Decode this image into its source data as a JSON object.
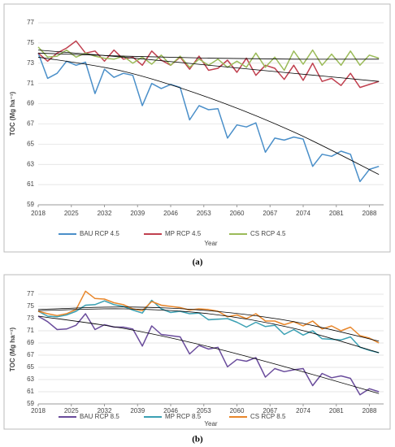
{
  "chart_data": [
    {
      "type": "line",
      "caption": "(a)",
      "xlabel": "Year",
      "ylabel": "TOC (Mg ha⁻¹)",
      "xlim": [
        2018,
        2091
      ],
      "ylim": [
        59,
        77
      ],
      "xticks": [
        2018,
        2025,
        2032,
        2039,
        2046,
        2053,
        2060,
        2067,
        2074,
        2081,
        2088
      ],
      "yticks": [
        59,
        61,
        63,
        65,
        67,
        69,
        71,
        73,
        75,
        77
      ],
      "grid": true,
      "x": [
        2018,
        2020,
        2022,
        2024,
        2026,
        2028,
        2030,
        2032,
        2034,
        2036,
        2038,
        2040,
        2042,
        2044,
        2046,
        2048,
        2050,
        2052,
        2054,
        2056,
        2058,
        2060,
        2062,
        2064,
        2066,
        2068,
        2070,
        2072,
        2074,
        2076,
        2078,
        2080,
        2082,
        2084,
        2086,
        2088,
        2090
      ],
      "trend_x": [
        2018,
        2036,
        2054,
        2072,
        2090
      ],
      "trend_color": "#000000",
      "series": [
        {
          "name": "BAU RCP 4.5",
          "color": "#4a8fc9",
          "values": [
            74,
            71.5,
            72,
            73.2,
            72.8,
            73.1,
            70,
            72.4,
            71.6,
            72,
            71.8,
            68.8,
            71,
            70.5,
            70.9,
            70.6,
            67.4,
            68.8,
            68.4,
            68.5,
            65.6,
            66.9,
            66.7,
            67.1,
            64.2,
            65.6,
            65.4,
            65.7,
            65.5,
            62.8,
            64,
            63.8,
            64.3,
            64,
            61.3,
            62.5,
            62.8
          ],
          "trend": [
            73.6,
            72.2,
            69.6,
            66.2,
            62.0
          ]
        },
        {
          "name": "MP RCP 4.5",
          "color": "#c0404f",
          "values": [
            74,
            73.2,
            74,
            74.5,
            75.2,
            74,
            74.2,
            73.2,
            74.3,
            73.4,
            73.6,
            72.8,
            74.2,
            73.3,
            72.8,
            73.6,
            72.4,
            73.7,
            72.3,
            72.5,
            73.3,
            72.1,
            73.5,
            71.8,
            72.8,
            72.5,
            71.4,
            72.8,
            71.3,
            73,
            71.2,
            71.5,
            70.8,
            72,
            70.6,
            70.9,
            71.2
          ],
          "trend": [
            74.3,
            73.6,
            72.8,
            72.0,
            71.2
          ]
        },
        {
          "name": "CS RCP 4.5",
          "color": "#9bbb59",
          "values": [
            74.6,
            73.6,
            73.7,
            74.3,
            73.6,
            74,
            73.7,
            73.5,
            73.4,
            73.7,
            73,
            73.6,
            72.9,
            73.8,
            72.8,
            73.7,
            72.6,
            73.4,
            72.8,
            73.4,
            72.6,
            73.2,
            72.6,
            74,
            72.6,
            73.6,
            72.3,
            74.2,
            72.9,
            74.3,
            72.8,
            73.9,
            72.8,
            74.2,
            72.8,
            73.8,
            73.5
          ],
          "trend": [
            74.0,
            73.7,
            73.5,
            73.4,
            73.4
          ]
        }
      ]
    },
    {
      "type": "line",
      "caption": "(b)",
      "xlabel": "Year",
      "ylabel": "TOC (Mg ha⁻¹)",
      "xlim": [
        2018,
        2091
      ],
      "ylim": [
        59,
        77
      ],
      "xticks": [
        2018,
        2025,
        2032,
        2039,
        2046,
        2053,
        2060,
        2067,
        2074,
        2081,
        2088
      ],
      "yticks": [
        59,
        61,
        63,
        65,
        67,
        69,
        71,
        73,
        75,
        77
      ],
      "grid": true,
      "x": [
        2018,
        2020,
        2022,
        2024,
        2026,
        2028,
        2030,
        2032,
        2034,
        2036,
        2038,
        2040,
        2042,
        2044,
        2046,
        2048,
        2050,
        2052,
        2054,
        2056,
        2058,
        2060,
        2062,
        2064,
        2066,
        2068,
        2070,
        2072,
        2074,
        2076,
        2078,
        2080,
        2082,
        2084,
        2086,
        2088,
        2090
      ],
      "trend_x": [
        2018,
        2036,
        2054,
        2072,
        2090
      ],
      "trend_color": "#000000",
      "series": [
        {
          "name": "BAU RCP 8.5",
          "color": "#6a4c9c",
          "values": [
            73.4,
            72.5,
            71.2,
            71.3,
            71.9,
            73.8,
            71.2,
            72,
            71.6,
            71.6,
            71.3,
            68.5,
            71.8,
            70.4,
            70.2,
            70,
            67.2,
            68.6,
            68,
            68.3,
            65.1,
            66.3,
            66,
            66.6,
            63.4,
            64.8,
            64.3,
            64.6,
            64.8,
            62,
            64,
            63.3,
            63.6,
            63.2,
            60.5,
            61.5,
            61
          ],
          "trend": [
            73.4,
            71.4,
            68.4,
            64.7,
            60.7
          ]
        },
        {
          "name": "MP RCP 8.5",
          "color": "#3aa0b3",
          "values": [
            74.2,
            73.4,
            73.3,
            73.6,
            74.2,
            75.2,
            75.3,
            75.9,
            75.3,
            75,
            74.4,
            73.9,
            76,
            74.6,
            74,
            74.2,
            73.8,
            73.9,
            72.8,
            72.9,
            73,
            72.4,
            71.6,
            72.4,
            71.7,
            71.9,
            70.4,
            71.2,
            70.3,
            71,
            69.7,
            69.6,
            69.5,
            70,
            68.3,
            67.8,
            67.4
          ],
          "trend": [
            74.3,
            74.6,
            73.8,
            71.4,
            67.4
          ]
        },
        {
          "name": "CS RCP 8.5",
          "color": "#e8862a",
          "values": [
            74.2,
            73.8,
            73.5,
            73.8,
            74.5,
            77.5,
            76.3,
            76.2,
            75.6,
            75.3,
            74.6,
            74.3,
            75.8,
            75.2,
            75,
            74.8,
            74.4,
            74.6,
            74.5,
            74.2,
            73.3,
            73.6,
            73,
            73.8,
            72.6,
            72.6,
            72,
            72.5,
            71.8,
            72.6,
            71.3,
            71.8,
            71,
            71.6,
            70.2,
            69.8,
            69
          ],
          "trend": [
            74.5,
            74.9,
            74.3,
            72.5,
            69.3
          ]
        }
      ]
    }
  ]
}
